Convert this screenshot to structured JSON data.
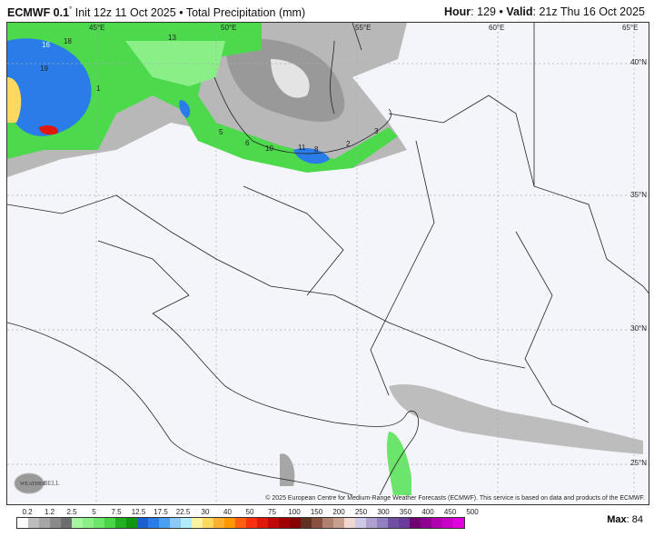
{
  "header": {
    "model": "ECMWF 0.1",
    "degree": "°",
    "init": "Init 12z 11 Oct 2025",
    "sep": "•",
    "product": "Total Precipitation (mm)",
    "hour_label": "Hour",
    "hour": ": 129",
    "valid_label": "Valid",
    "valid": ": 21z Thu 16 Oct 2025"
  },
  "map": {
    "lon_labels": [
      "45°E",
      "50°E",
      "55°E",
      "60°E",
      "65°E"
    ],
    "lat_labels": [
      "40°N",
      "35°N",
      "30°N",
      "25°N"
    ],
    "value_labels": [
      "16",
      "18",
      "19",
      "13",
      "5",
      "6",
      "10",
      "11",
      "8",
      "2",
      "3",
      "1"
    ],
    "copyright": "© 2025 European Centre for Medium-Range Weather Forecasts (ECMWF). This service is based on data and products of the ECMWF.",
    "logo_text": "WEATHERBELL",
    "background_color": "#f3f5fb"
  },
  "colorbar": {
    "labels": [
      "0.2",
      "1.2",
      "2.5",
      "5",
      "7.5",
      "12.5",
      "17.5",
      "22.5",
      "30",
      "40",
      "50",
      "75",
      "100",
      "150",
      "200",
      "250",
      "300",
      "350",
      "400",
      "450",
      "500"
    ],
    "colors": [
      "#ffffff",
      "#bdbdbd",
      "#a6a6a6",
      "#8a8a8a",
      "#6e6e6e",
      "#a6f5a0",
      "#8aef86",
      "#6be66a",
      "#48d648",
      "#22b022",
      "#129612",
      "#1e5fd0",
      "#2a7ce8",
      "#4aa0f0",
      "#8cc8f8",
      "#b2eaf8",
      "#fff2a0",
      "#ffd860",
      "#ffb030",
      "#ff9800",
      "#ff6010",
      "#f83010",
      "#e01808",
      "#c00808",
      "#a00000",
      "#880000",
      "#603020",
      "#8a5040",
      "#b08070",
      "#c8a090",
      "#f0d8d0",
      "#d0c8e8",
      "#b0a0d0",
      "#9080c0",
      "#7050a0",
      "#6a3d9a",
      "#700070",
      "#900090",
      "#b000b0",
      "#c800c8",
      "#e000e0"
    ]
  },
  "max": {
    "label": "Max",
    "value": ": 84"
  }
}
